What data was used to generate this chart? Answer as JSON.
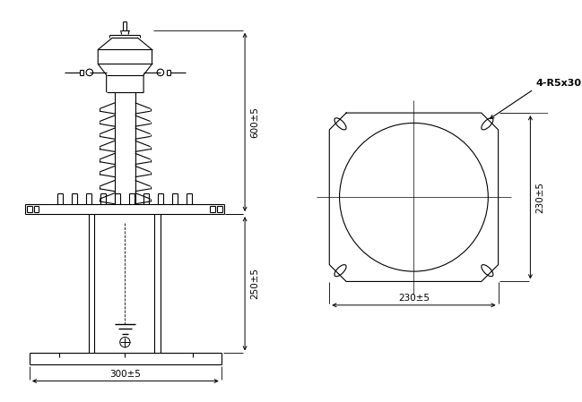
{
  "bg_color": "#ffffff",
  "line_color": "#000000",
  "dim_600": "600±5",
  "dim_250": "250±5",
  "dim_300": "300±5",
  "dim_230h": "230±5",
  "dim_230v": "230±5",
  "dim_r": "4-R5x30"
}
